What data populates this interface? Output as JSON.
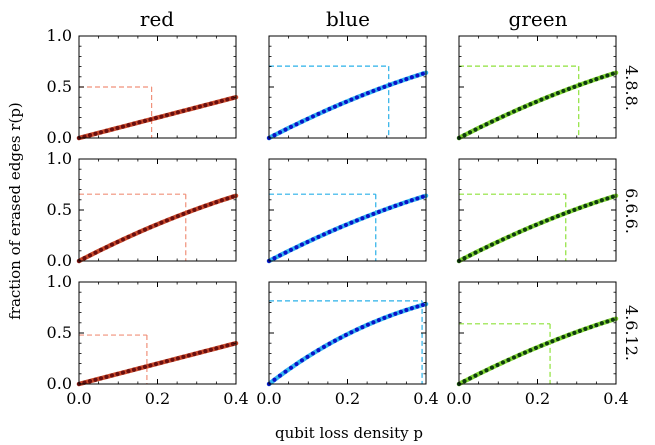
{
  "chart_data": {
    "type": "line",
    "title": "",
    "xlabel": "qubit loss density p",
    "ylabel": "fraction of erased edges r(p)",
    "xlim": [
      0,
      0.4
    ],
    "ylim": [
      0,
      1
    ],
    "x_ticks": [
      "0.0",
      "0.2",
      "0.4"
    ],
    "y_ticks": [
      "0.0",
      "0.5",
      "1.0"
    ],
    "columns": [
      "red",
      "blue",
      "green"
    ],
    "rows": [
      "4.8.8.",
      "6.6.6.",
      "4.6.12."
    ],
    "colors": {
      "red": {
        "curve": "#c94a2c",
        "dots": "#6b0f0f",
        "guide": "#f0907a"
      },
      "blue": {
        "curve": "#33b5ee",
        "dots": "#0a13c8",
        "guide": "#2ab0e8"
      },
      "green": {
        "curve": "#7fd431",
        "dots": "#0f3b0f",
        "guide": "#8ee23a"
      }
    },
    "panels": [
      {
        "row": "4.8.8.",
        "color": "red",
        "model": [
          1.0,
          1.0
        ],
        "markers": [
          0.0,
          0.014,
          0.028,
          0.042,
          0.056,
          0.07,
          0.084,
          0.098,
          0.112,
          0.126,
          0.14,
          0.154,
          0.168,
          0.182,
          0.196,
          0.21,
          0.224,
          0.238,
          0.252,
          0.266,
          0.28,
          0.294,
          0.308,
          0.322,
          0.336,
          0.35,
          0.364,
          0.378,
          0.392
        ],
        "threshold": {
          "p": 0.185,
          "r": 0.5
        }
      },
      {
        "row": "4.8.8.",
        "color": "blue",
        "model": [
          2.0,
          1.0
        ],
        "markers": [
          0.0,
          0.014,
          0.028,
          0.042,
          0.056,
          0.07,
          0.084,
          0.098,
          0.112,
          0.126,
          0.14,
          0.154,
          0.168,
          0.182,
          0.196,
          0.21,
          0.224,
          0.238,
          0.252,
          0.266,
          0.28,
          0.294,
          0.308,
          0.322,
          0.336,
          0.35,
          0.364,
          0.378,
          0.392
        ],
        "threshold": {
          "p": 0.305,
          "r": 0.705
        }
      },
      {
        "row": "4.8.8.",
        "color": "green",
        "model": [
          2.0,
          1.0
        ],
        "markers": [
          0.0,
          0.014,
          0.028,
          0.042,
          0.056,
          0.07,
          0.084,
          0.098,
          0.112,
          0.126,
          0.14,
          0.154,
          0.168,
          0.182,
          0.196,
          0.21,
          0.224,
          0.238,
          0.252,
          0.266,
          0.28,
          0.294,
          0.308,
          0.322,
          0.336,
          0.35,
          0.364,
          0.378,
          0.392
        ],
        "threshold": {
          "p": 0.305,
          "r": 0.705
        }
      },
      {
        "row": "6.6.6.",
        "color": "red",
        "model": [
          2.0,
          1.0
        ],
        "markers": [
          0.0,
          0.014,
          0.028,
          0.042,
          0.056,
          0.07,
          0.084,
          0.098,
          0.112,
          0.126,
          0.14,
          0.154,
          0.168,
          0.182,
          0.196,
          0.21,
          0.224,
          0.238,
          0.252,
          0.266,
          0.28,
          0.294,
          0.308,
          0.322,
          0.336,
          0.35,
          0.364,
          0.378,
          0.392
        ],
        "threshold": {
          "p": 0.272,
          "r": 0.655
        }
      },
      {
        "row": "6.6.6.",
        "color": "blue",
        "model": [
          2.0,
          1.0
        ],
        "markers": [
          0.0,
          0.014,
          0.028,
          0.042,
          0.056,
          0.07,
          0.084,
          0.098,
          0.112,
          0.126,
          0.14,
          0.154,
          0.168,
          0.182,
          0.196,
          0.21,
          0.224,
          0.238,
          0.252,
          0.266,
          0.28,
          0.294,
          0.308,
          0.322,
          0.336,
          0.35,
          0.364,
          0.378,
          0.392
        ],
        "threshold": {
          "p": 0.272,
          "r": 0.655
        }
      },
      {
        "row": "6.6.6.",
        "color": "green",
        "model": [
          2.0,
          1.0
        ],
        "markers": [
          0.0,
          0.014,
          0.028,
          0.042,
          0.056,
          0.07,
          0.084,
          0.098,
          0.112,
          0.126,
          0.14,
          0.154,
          0.168,
          0.182,
          0.196,
          0.21,
          0.224,
          0.238,
          0.252,
          0.266,
          0.28,
          0.294,
          0.308,
          0.322,
          0.336,
          0.35,
          0.364,
          0.378,
          0.392
        ],
        "threshold": {
          "p": 0.272,
          "r": 0.655
        }
      },
      {
        "row": "4.6.12.",
        "color": "red",
        "model": [
          1.0,
          1.0
        ],
        "markers": [
          0.0,
          0.014,
          0.028,
          0.042,
          0.056,
          0.07,
          0.084,
          0.098,
          0.112,
          0.126,
          0.14,
          0.154,
          0.168,
          0.182,
          0.196,
          0.21,
          0.224,
          0.238,
          0.252,
          0.266,
          0.28,
          0.294,
          0.308,
          0.322,
          0.336,
          0.35,
          0.364,
          0.378,
          0.392
        ],
        "threshold": {
          "p": 0.173,
          "r": 0.48
        }
      },
      {
        "row": "4.6.12.",
        "color": "blue",
        "model": [
          3.0,
          1.0
        ],
        "markers": [
          0.0,
          0.014,
          0.028,
          0.042,
          0.056,
          0.07,
          0.084,
          0.098,
          0.112,
          0.126,
          0.14,
          0.154,
          0.168,
          0.182,
          0.196,
          0.21,
          0.224,
          0.238,
          0.252,
          0.266,
          0.28,
          0.294,
          0.308,
          0.322,
          0.336,
          0.35,
          0.364,
          0.378,
          0.392
        ],
        "threshold": {
          "p": 0.39,
          "r": 0.815
        }
      },
      {
        "row": "4.6.12.",
        "color": "green",
        "model": [
          2.0,
          1.0
        ],
        "markers": [
          0.0,
          0.014,
          0.028,
          0.042,
          0.056,
          0.07,
          0.084,
          0.098,
          0.112,
          0.126,
          0.14,
          0.154,
          0.168,
          0.182,
          0.196,
          0.21,
          0.224,
          0.238,
          0.252,
          0.266,
          0.28,
          0.294,
          0.308,
          0.322,
          0.336,
          0.35,
          0.364,
          0.378,
          0.392
        ],
        "threshold": {
          "p": 0.232,
          "r": 0.59
        }
      }
    ]
  }
}
